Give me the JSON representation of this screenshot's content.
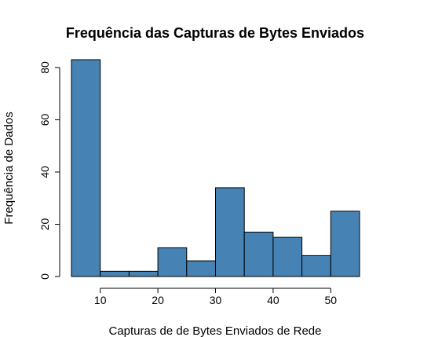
{
  "chart_data": {
    "type": "bar",
    "title": "Frequência das Capturas de Bytes Enviados",
    "xlabel": "Capturas de de Bytes Enviados de Rede",
    "ylabel": "Frequência de Dados",
    "bins": [
      {
        "start": 5,
        "end": 10,
        "count": 83
      },
      {
        "start": 10,
        "end": 15,
        "count": 2
      },
      {
        "start": 15,
        "end": 20,
        "count": 2
      },
      {
        "start": 20,
        "end": 25,
        "count": 11
      },
      {
        "start": 25,
        "end": 30,
        "count": 6
      },
      {
        "start": 30,
        "end": 35,
        "count": 34
      },
      {
        "start": 35,
        "end": 40,
        "count": 17
      },
      {
        "start": 40,
        "end": 45,
        "count": 15
      },
      {
        "start": 45,
        "end": 50,
        "count": 8
      },
      {
        "start": 50,
        "end": 55,
        "count": 25
      }
    ],
    "xticks": [
      10,
      20,
      30,
      40,
      50
    ],
    "yticks": [
      0,
      20,
      40,
      60,
      80
    ],
    "xlim": [
      5,
      55
    ],
    "ylim": [
      0,
      83
    ],
    "bar_color": "#4682b4",
    "grid": false,
    "legend": "none"
  }
}
